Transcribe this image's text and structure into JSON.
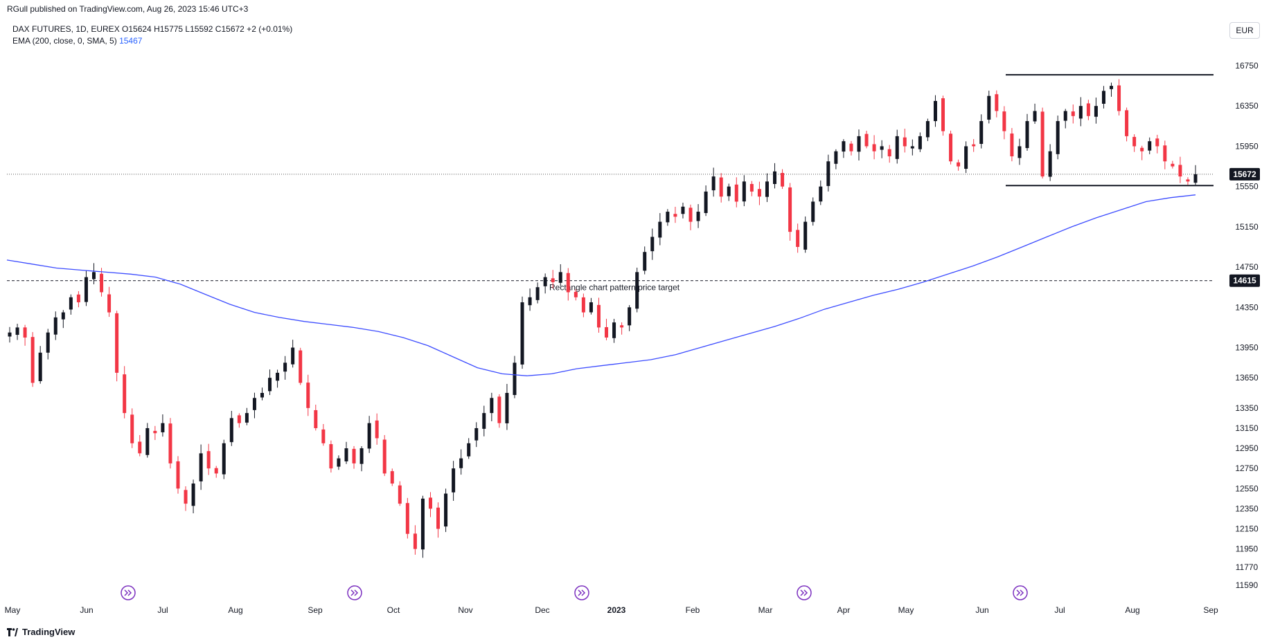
{
  "publisher_line": "RGull published on TradingView.com, Aug 26, 2023 15:46 UTC+3",
  "legend": {
    "symbol_line": "DAX FUTURES, 1D, EUREX  O15624  H15775  L15592  C15672  +2 (+0.01%)",
    "ema_label": "EMA (200, close, 0, SMA, 5)",
    "ema_value": "15467"
  },
  "currency": "EUR",
  "footer": {
    "brand": "TradingView"
  },
  "colors": {
    "up": "#131722",
    "down": "#f23645",
    "ema": "#3b4bff",
    "grid": "#ffffff"
  },
  "chart_data": {
    "type": "candlestick",
    "y_ticks": [
      16750,
      16350,
      15950,
      15550,
      15150,
      14750,
      14350,
      13950,
      13650,
      13350,
      13150,
      12950,
      12750,
      12550,
      12350,
      12150,
      11950,
      11770,
      11590
    ],
    "y_tick_labels": [
      "16750",
      "16350",
      "15950",
      "15550",
      "15150",
      "14750",
      "14350",
      "13950",
      "13650",
      "13350",
      "13150",
      "12950",
      "12750",
      "12550",
      "12350",
      "12150",
      "11950",
      "11770",
      "11590"
    ],
    "x_ticks": [
      "May",
      "Jun",
      "Jul",
      "Aug",
      "Sep",
      "Oct",
      "Nov",
      "Dec",
      "2023",
      "Feb",
      "Mar",
      "Apr",
      "May",
      "Jun",
      "Jul",
      "Aug",
      "Sep"
    ],
    "last_price": 15672,
    "last_price_label": "15672",
    "target_price": 14615,
    "target_price_label": "14615",
    "target_annotation": "Rectangle chart pattern price target",
    "rectangle": {
      "top": 16660,
      "bottom": 15560,
      "from": "Jun",
      "to": "Aug"
    },
    "ema_series_name": "EMA (200, close, 0, SMA, 5)",
    "close_path": [
      14100,
      14150,
      14050,
      13600,
      13900,
      14100,
      14250,
      14300,
      14450,
      14400,
      14650,
      14700,
      14500,
      14300,
      13700,
      13300,
      13000,
      12900,
      13150,
      13100,
      13200,
      12800,
      12550,
      12400,
      12600,
      12900,
      12750,
      12700,
      13000,
      13250,
      13200,
      13300,
      13450,
      13500,
      13650,
      13700,
      13800,
      13950,
      13600,
      13350,
      13150,
      13000,
      12750,
      12850,
      12950,
      12800,
      12950,
      13200,
      13050,
      12700,
      12600,
      12400,
      12100,
      11950,
      12450,
      12350,
      12150,
      12500,
      12750,
      12850,
      13000,
      13150,
      13300,
      13450,
      13200,
      13500,
      13800,
      14400,
      14450,
      14550,
      14650,
      14600,
      14700,
      14500,
      14450,
      14300,
      14400,
      14150,
      14050,
      14200,
      14150,
      14350,
      14700,
      14900,
      15050,
      15200,
      15300,
      15250,
      15350,
      15200,
      15300,
      15500,
      15650,
      15450,
      15550,
      15400,
      15600,
      15500,
      15450,
      15600,
      15700,
      15550,
      15100,
      14950,
      15200,
      15400,
      15550,
      15800,
      15900,
      16000,
      15900,
      16050,
      15950,
      15900,
      15950,
      15850,
      16050,
      15950,
      15950,
      16050,
      16200,
      16400,
      16100,
      15800,
      15750,
      15950,
      15950,
      16200,
      16450,
      16300,
      16100,
      15850,
      15950,
      16200,
      16300,
      15650,
      15900,
      16200,
      16300,
      16250,
      16350,
      16250,
      16350,
      16500,
      16550,
      16300,
      16050,
      15950,
      15900,
      16000,
      15950,
      15800,
      15750,
      15650,
      15600,
      15672
    ],
    "ema_path": [
      14820,
      14780,
      14740,
      14720,
      14700,
      14680,
      14650,
      14580,
      14480,
      14380,
      14300,
      14250,
      14210,
      14180,
      14150,
      14110,
      14050,
      13970,
      13860,
      13750,
      13690,
      13670,
      13690,
      13740,
      13770,
      13800,
      13830,
      13880,
      13950,
      14020,
      14090,
      14160,
      14240,
      14330,
      14400,
      14470,
      14530,
      14600,
      14680,
      14760,
      14850,
      14950,
      15050,
      15150,
      15240,
      15320,
      15400,
      15440,
      15467
    ]
  }
}
